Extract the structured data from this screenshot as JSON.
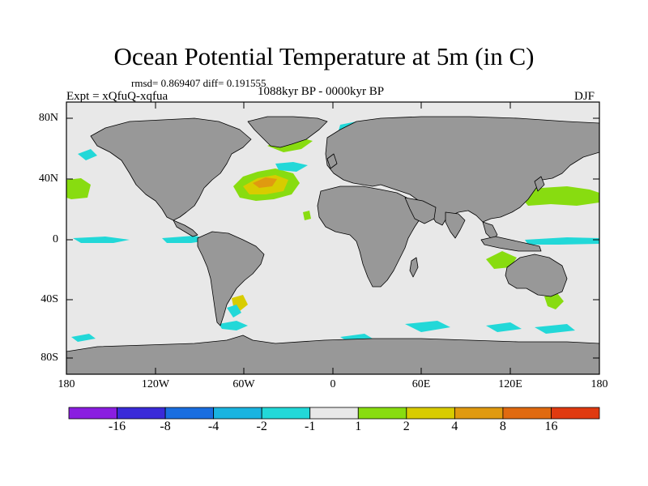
{
  "map": {
    "title": "Ocean Potential Temperature at 5m (in C)",
    "stats": "rmsd= 0.869407 diff= 0.191555",
    "experiment": "Expt = xQfuQ-xqfua",
    "period": "1088kyr BP - 0000kyr BP",
    "season": "DJF",
    "lat_ticks": [
      "80N",
      "40N",
      "0",
      "40S",
      "80S"
    ],
    "lon_ticks": [
      "180",
      "120W",
      "60W",
      "0",
      "60E",
      "120E",
      "180"
    ]
  },
  "colors": {
    "land": "#989898",
    "ocean_neutral": "#e8e8e8",
    "coast": "#000000"
  },
  "colorbar": {
    "labels": [
      "-16",
      "-8",
      "-4",
      "-2",
      "-1",
      "1",
      "2",
      "4",
      "8",
      "16"
    ],
    "colors": [
      "#8a1ee0",
      "#3a2ad8",
      "#1a6ee0",
      "#1ab4e0",
      "#22d8d8",
      "#e8e8e8",
      "#88dc10",
      "#d8cc00",
      "#e09a10",
      "#e06a10",
      "#e03a10"
    ]
  }
}
